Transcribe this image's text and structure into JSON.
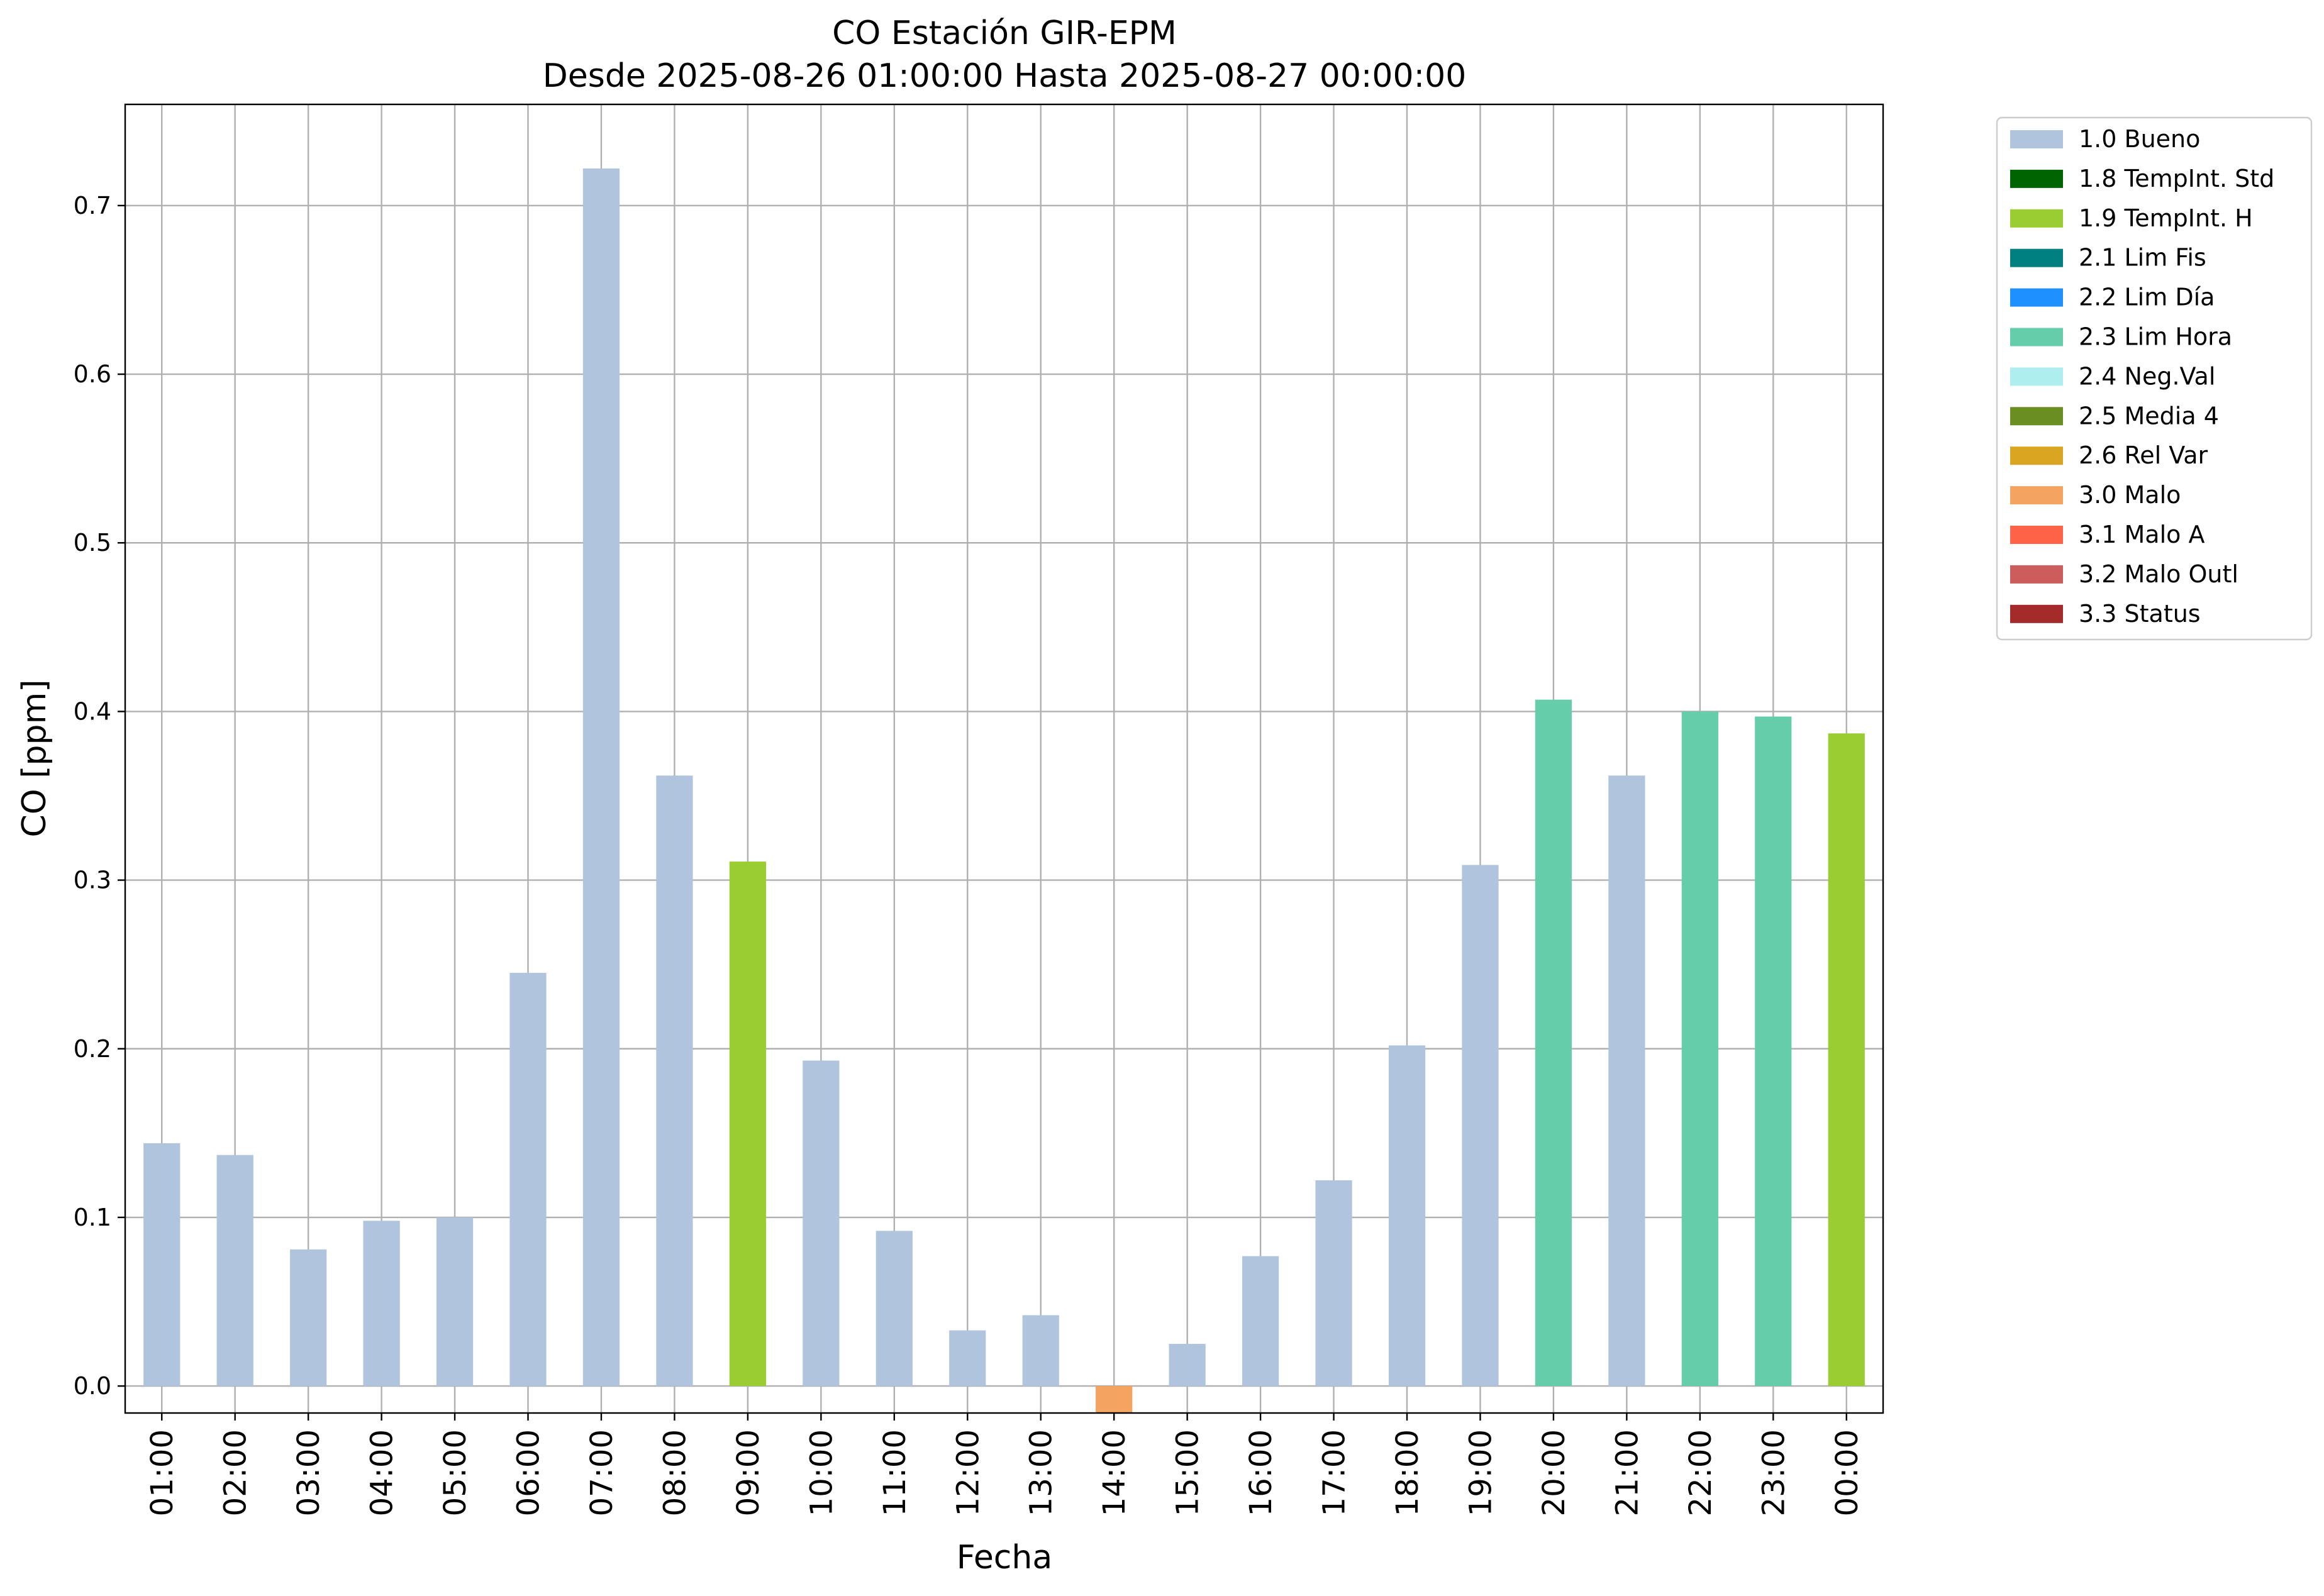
{
  "chart_data": {
    "type": "bar",
    "title": "CO Estación GIR-EPM",
    "subtitle": "Desde 2025-08-26 01:00:00 Hasta 2025-08-27 00:00:00",
    "xlabel": "Fecha",
    "ylabel": "CO [ppm]",
    "ylim": [
      -0.016,
      0.76
    ],
    "yticks": [
      0.0,
      0.1,
      0.2,
      0.3,
      0.4,
      0.5,
      0.6,
      0.7
    ],
    "ytick_labels": [
      "0.0",
      "0.1",
      "0.2",
      "0.3",
      "0.4",
      "0.5",
      "0.6",
      "0.7"
    ],
    "grid": true,
    "legend_position": "outside-top-right",
    "categories": [
      "01:00",
      "02:00",
      "03:00",
      "04:00",
      "05:00",
      "06:00",
      "07:00",
      "08:00",
      "09:00",
      "10:00",
      "11:00",
      "12:00",
      "13:00",
      "14:00",
      "15:00",
      "16:00",
      "17:00",
      "18:00",
      "19:00",
      "20:00",
      "21:00",
      "22:00",
      "23:00",
      "00:00"
    ],
    "values": [
      0.144,
      0.137,
      0.081,
      0.098,
      0.1,
      0.245,
      0.722,
      0.362,
      0.311,
      0.193,
      0.092,
      0.033,
      0.042,
      -0.016,
      0.025,
      0.077,
      0.122,
      0.202,
      0.309,
      0.407,
      0.362,
      0.4,
      0.397,
      0.387
    ],
    "flags": [
      "1.0 Bueno",
      "1.0 Bueno",
      "1.0 Bueno",
      "1.0 Bueno",
      "1.0 Bueno",
      "1.0 Bueno",
      "1.0 Bueno",
      "1.0 Bueno",
      "1.9 TempInt. H",
      "1.0 Bueno",
      "1.0 Bueno",
      "1.0 Bueno",
      "1.0 Bueno",
      "3.0 Malo",
      "1.0 Bueno",
      "1.0 Bueno",
      "1.0 Bueno",
      "1.0 Bueno",
      "1.0 Bueno",
      "2.3 Lim Hora",
      "1.0 Bueno",
      "2.3 Lim Hora",
      "2.3 Lim Hora",
      "1.9 TempInt. H"
    ],
    "legend": [
      {
        "label": "1.0 Bueno",
        "color": "#b0c4de"
      },
      {
        "label": "1.8 TempInt. Std",
        "color": "#006400"
      },
      {
        "label": "1.9 TempInt. H",
        "color": "#9acd32"
      },
      {
        "label": "2.1 Lim Fis",
        "color": "#008080"
      },
      {
        "label": "2.2 Lim Día",
        "color": "#1e90ff"
      },
      {
        "label": "2.3 Lim Hora",
        "color": "#66cdaa"
      },
      {
        "label": "2.4 Neg.Val",
        "color": "#afeeee"
      },
      {
        "label": "2.5 Media 4",
        "color": "#6b8e23"
      },
      {
        "label": "2.6 Rel Var",
        "color": "#daa520"
      },
      {
        "label": "3.0 Malo",
        "color": "#f4a460"
      },
      {
        "label": "3.1 Malo A",
        "color": "#ff6347"
      },
      {
        "label": "3.2 Malo Outl",
        "color": "#cd5c5c"
      },
      {
        "label": "3.3 Status",
        "color": "#a52a2a"
      }
    ]
  }
}
